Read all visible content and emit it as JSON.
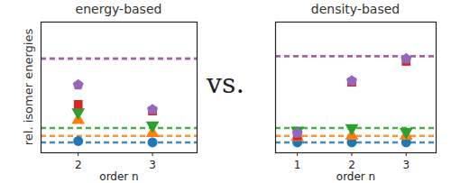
{
  "chart_data": [
    {
      "type": "scatter",
      "title": "energy-based",
      "x_label": "order n",
      "y_label": "rel. isomer energies",
      "xlim": [
        1.5,
        3.6
      ],
      "xticks": [
        2,
        3
      ],
      "ylim": [
        0,
        10
      ],
      "tick_labels": "x",
      "series": [
        {
          "color": "#1f77b4",
          "marker": "circle",
          "x": [
            2,
            3
          ],
          "values": [
            0.9,
            0.8
          ],
          "reference": 0.8,
          "line_style": "dashed"
        },
        {
          "color": "#ff7f0e",
          "marker": "triangle",
          "x": [
            2,
            3
          ],
          "values": [
            2.5,
            1.5
          ],
          "reference": 1.3,
          "line_style": "dashed"
        },
        {
          "color": "#2ca02c",
          "marker": "triangle_down",
          "x": [
            2,
            3
          ],
          "values": [
            3.1,
            2.1
          ],
          "reference": 1.9,
          "line_style": "dashed"
        },
        {
          "color": "#d62728",
          "marker": "square",
          "x": [
            2,
            3
          ],
          "values": [
            3.7,
            3.2
          ],
          "reference": 7.2,
          "line_style": "dashed"
        },
        {
          "color": "#9467bd",
          "marker": "pentagon",
          "x": [
            2,
            3
          ],
          "values": [
            5.2,
            3.3
          ],
          "reference": 7.2,
          "line_style": "dashed"
        }
      ]
    },
    {
      "type": "scatter",
      "title": "density-based",
      "x_label": "order n",
      "xlim": [
        0.6,
        3.55
      ],
      "xticks": [
        1,
        2,
        3
      ],
      "ylim": [
        0,
        10
      ],
      "tick_labels": "x",
      "series": [
        {
          "color": "#1f77b4",
          "marker": "circle",
          "x": [
            1,
            2,
            3
          ],
          "values": [
            0.8,
            0.8,
            0.8
          ],
          "reference": 0.8,
          "line_style": "dashed"
        },
        {
          "color": "#ff7f0e",
          "marker": "triangle",
          "x": [
            1,
            2,
            3
          ],
          "values": [
            1.2,
            1.3,
            1.3
          ],
          "reference": 1.3,
          "line_style": "dashed"
        },
        {
          "color": "#2ca02c",
          "marker": "triangle_down",
          "x": [
            1,
            2,
            3
          ],
          "values": [
            1.7,
            1.9,
            1.6
          ],
          "reference": 1.9,
          "line_style": "dashed"
        },
        {
          "color": "#d62728",
          "marker": "square",
          "x": [
            1,
            2,
            3
          ],
          "values": [
            1.3,
            5.4,
            7.0
          ],
          "reference": 7.4,
          "line_style": "dashed"
        },
        {
          "color": "#9467bd",
          "marker": "pentagon",
          "x": [
            1,
            2,
            3
          ],
          "values": [
            1.5,
            5.5,
            7.2
          ],
          "reference": 7.4,
          "line_style": "dashed"
        }
      ]
    }
  ],
  "annotation": "vs."
}
